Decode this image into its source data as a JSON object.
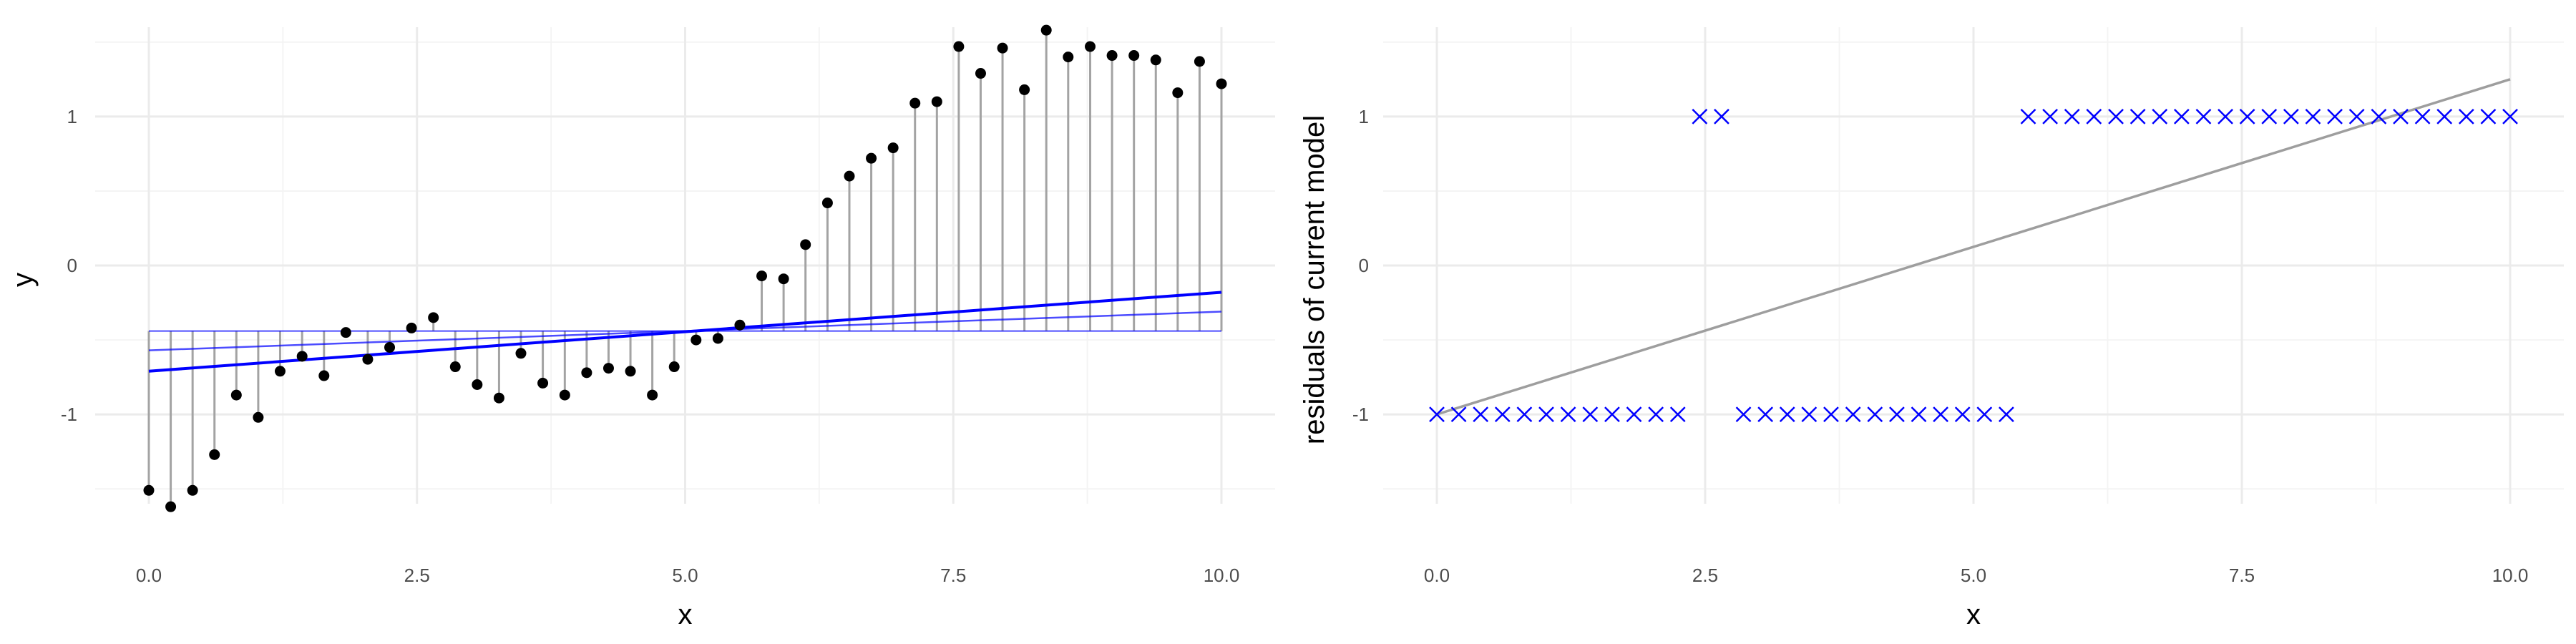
{
  "colors": {
    "grid_major": "#ebebeb",
    "grid_minor": "#f4f4f4",
    "points": "#000000",
    "segments": "#a3a3a3",
    "fit_lines": "#0000ff",
    "crosses": "#0000ff",
    "residual_fit": "#9e9e9e"
  },
  "chart_data": [
    {
      "type": "scatter",
      "panel": "left",
      "xlabel": "x",
      "ylabel": "y",
      "xlim": [
        0,
        10
      ],
      "ylim": [
        -1.6,
        1.6
      ],
      "xticks": [
        "0.0",
        "2.5",
        "5.0",
        "7.5",
        "10.0"
      ],
      "yticks": [
        "-1",
        "0",
        "1"
      ],
      "xtick_values": [
        0,
        2.5,
        5,
        7.5,
        10
      ],
      "ytick_values": [
        -1,
        0,
        1
      ],
      "grid": true,
      "legend": "none",
      "points": {
        "x": [
          0.0,
          0.204,
          0.408,
          0.612,
          0.816,
          1.02,
          1.224,
          1.429,
          1.633,
          1.837,
          2.041,
          2.245,
          2.449,
          2.653,
          2.857,
          3.061,
          3.265,
          3.469,
          3.673,
          3.878,
          4.082,
          4.286,
          4.49,
          4.694,
          4.898,
          5.102,
          5.306,
          5.51,
          5.714,
          5.918,
          6.122,
          6.327,
          6.531,
          6.735,
          6.939,
          7.143,
          7.347,
          7.551,
          7.755,
          7.959,
          8.163,
          8.367,
          8.571,
          8.776,
          8.98,
          9.184,
          9.388,
          9.592,
          9.796,
          10.0
        ],
        "y": [
          -1.51,
          -1.62,
          -1.51,
          -1.27,
          -0.87,
          -1.02,
          -0.71,
          -0.61,
          -0.74,
          -0.45,
          -0.63,
          -0.55,
          -0.42,
          -0.35,
          -0.68,
          -0.8,
          -0.89,
          -0.59,
          -0.79,
          -0.87,
          -0.72,
          -0.69,
          -0.71,
          -0.87,
          -0.68,
          -0.5,
          -0.49,
          -0.4,
          -0.07,
          -0.09,
          0.14,
          0.42,
          0.6,
          0.72,
          0.79,
          1.09,
          1.1,
          1.47,
          1.29,
          1.46,
          1.18,
          1.58,
          1.4,
          1.47,
          1.41,
          1.41,
          1.38,
          1.16,
          1.37,
          1.22
        ]
      },
      "fit_lines": [
        {
          "x": [
            0,
            10
          ],
          "y": [
            -0.44,
            -0.44
          ]
        },
        {
          "x": [
            0,
            10
          ],
          "y": [
            -0.57,
            -0.31
          ]
        },
        {
          "x": [
            0,
            10
          ],
          "y": [
            -0.71,
            -0.18
          ]
        }
      ]
    },
    {
      "type": "scatter",
      "panel": "right",
      "xlabel": "x",
      "ylabel": "residuals of current model",
      "xlim": [
        0,
        10
      ],
      "ylim": [
        -1.6,
        1.6
      ],
      "xticks": [
        "0.0",
        "2.5",
        "5.0",
        "7.5",
        "10.0"
      ],
      "yticks": [
        "-1",
        "0",
        "1"
      ],
      "xtick_values": [
        0,
        2.5,
        5,
        7.5,
        10
      ],
      "ytick_values": [
        -1,
        0,
        1
      ],
      "grid": true,
      "legend": "none",
      "marker": "x",
      "fit_line": {
        "x": [
          0,
          10
        ],
        "y": [
          -1.0,
          1.25
        ]
      }
    }
  ]
}
